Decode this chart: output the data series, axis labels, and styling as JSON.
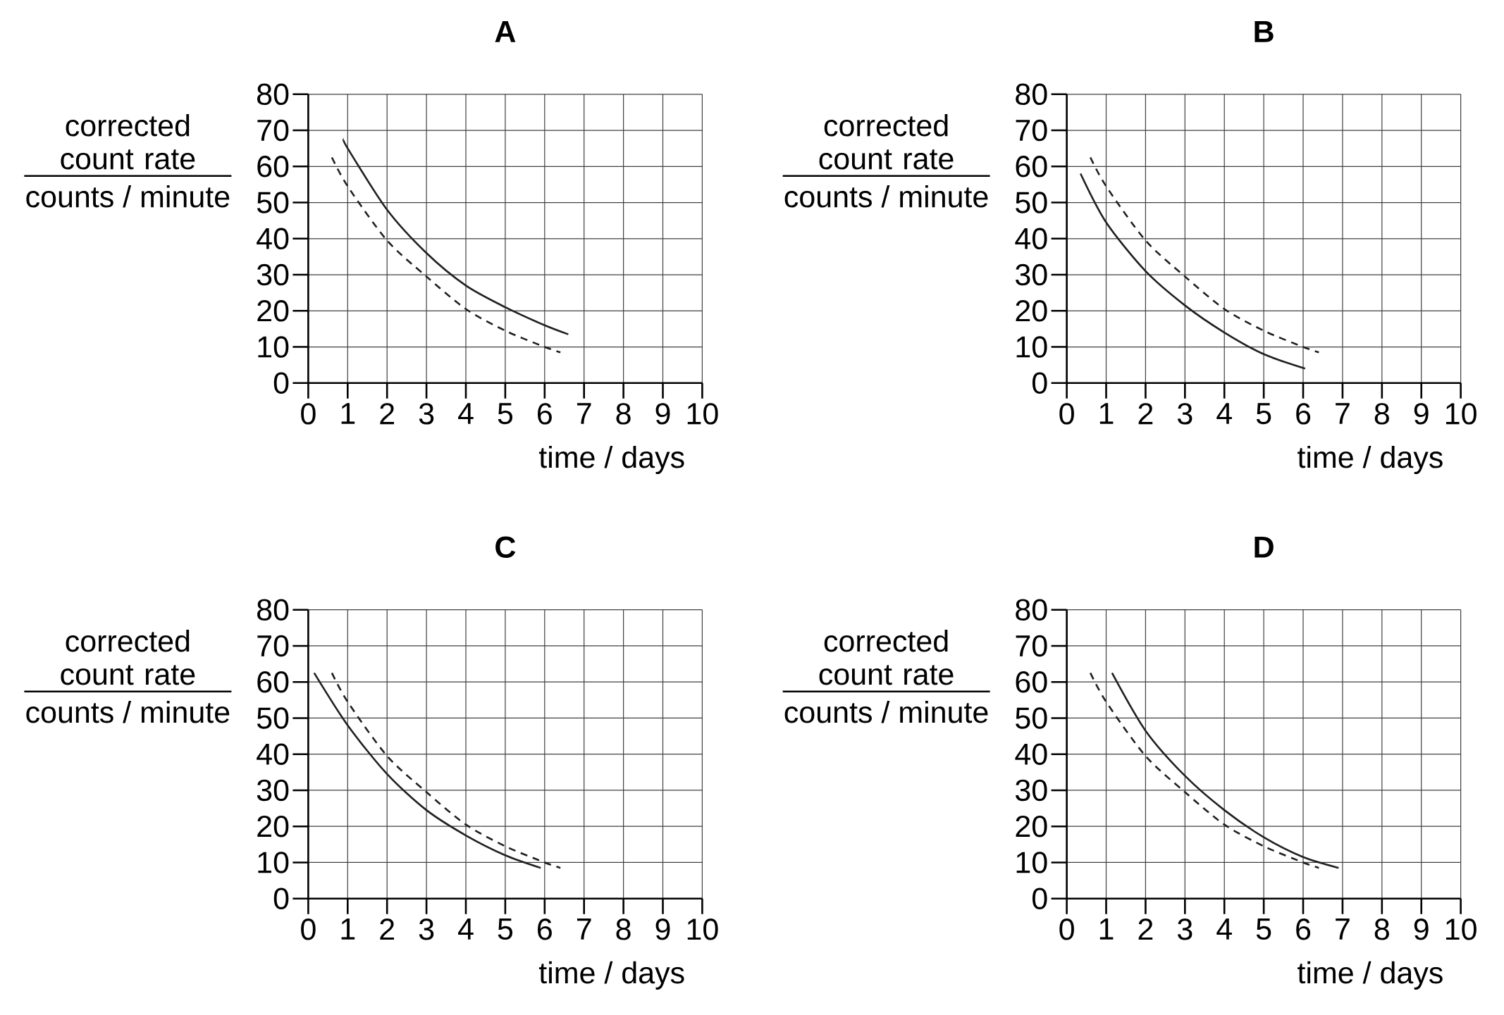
{
  "chart_data": [
    {
      "type": "line",
      "title": "A",
      "xlabel": "time / days",
      "ylabel": "corrected count rate",
      "annotations": [
        "counts / minute"
      ],
      "xlim": [
        0,
        10
      ],
      "ylim": [
        0,
        80
      ],
      "xticks": [
        0,
        1,
        2,
        3,
        4,
        5,
        6,
        7,
        8,
        9,
        10
      ],
      "yticks": [
        0,
        10,
        20,
        30,
        40,
        50,
        60,
        70,
        80
      ],
      "grid": true,
      "series": [
        {
          "color": "#231f20",
          "line_style": "solid",
          "x": [
            0.9,
            1,
            2,
            3,
            4,
            5,
            6,
            6.6
          ],
          "values": [
            67.5,
            65,
            48,
            36,
            27,
            21,
            16,
            13.5
          ]
        },
        {
          "color": "#231f20",
          "line_style": "dashed",
          "x": [
            0.6,
            1,
            2,
            3,
            4,
            5,
            6,
            6.4
          ],
          "values": [
            62.5,
            54.5,
            39.5,
            29.5,
            20.5,
            14.5,
            10,
            8.5
          ]
        }
      ]
    },
    {
      "type": "line",
      "title": "B",
      "xlabel": "time / days",
      "ylabel": "corrected count rate",
      "annotations": [
        "counts / minute"
      ],
      "xlim": [
        0,
        10
      ],
      "ylim": [
        0,
        80
      ],
      "xticks": [
        0,
        1,
        2,
        3,
        4,
        5,
        6,
        7,
        8,
        9,
        10
      ],
      "yticks": [
        0,
        10,
        20,
        30,
        40,
        50,
        60,
        70,
        80
      ],
      "grid": true,
      "series": [
        {
          "color": "#231f20",
          "line_style": "solid",
          "x": [
            0.35,
            1,
            2,
            3,
            4,
            5,
            6.05
          ],
          "values": [
            58,
            44.5,
            31,
            21.5,
            14,
            8,
            4
          ]
        },
        {
          "color": "#231f20",
          "line_style": "dashed",
          "x": [
            0.6,
            1,
            2,
            3,
            4,
            5,
            6,
            6.4
          ],
          "values": [
            62.5,
            54.5,
            39.5,
            29.5,
            20.5,
            14.5,
            10,
            8.5
          ]
        }
      ]
    },
    {
      "type": "line",
      "title": "C",
      "xlabel": "time / days",
      "ylabel": "corrected count rate",
      "annotations": [
        "counts / minute"
      ],
      "xlim": [
        0,
        10
      ],
      "ylim": [
        0,
        80
      ],
      "xticks": [
        0,
        1,
        2,
        3,
        4,
        5,
        6,
        7,
        8,
        9,
        10
      ],
      "yticks": [
        0,
        10,
        20,
        30,
        40,
        50,
        60,
        70,
        80
      ],
      "grid": true,
      "series": [
        {
          "color": "#231f20",
          "line_style": "solid",
          "x": [
            0.15,
            1,
            2,
            3,
            4,
            5,
            5.9
          ],
          "values": [
            62.5,
            48,
            34.5,
            24.5,
            17.5,
            12,
            8.5
          ]
        },
        {
          "color": "#231f20",
          "line_style": "dashed",
          "x": [
            0.6,
            1,
            2,
            3,
            4,
            5,
            6,
            6.4
          ],
          "values": [
            62.5,
            54.5,
            39.5,
            29.5,
            20.5,
            14.5,
            10,
            8.5
          ]
        }
      ]
    },
    {
      "type": "line",
      "title": "D",
      "xlabel": "time / days",
      "ylabel": "corrected count rate",
      "annotations": [
        "counts / minute"
      ],
      "xlim": [
        0,
        10
      ],
      "ylim": [
        0,
        80
      ],
      "xticks": [
        0,
        1,
        2,
        3,
        4,
        5,
        6,
        7,
        8,
        9,
        10
      ],
      "yticks": [
        0,
        10,
        20,
        30,
        40,
        50,
        60,
        70,
        80
      ],
      "grid": true,
      "series": [
        {
          "color": "#231f20",
          "line_style": "solid",
          "x": [
            1.15,
            2,
            3,
            4,
            5,
            6,
            6.9
          ],
          "values": [
            62.5,
            46.5,
            34,
            24.5,
            17,
            11.5,
            8.5
          ]
        },
        {
          "color": "#231f20",
          "line_style": "dashed",
          "x": [
            0.6,
            1,
            2,
            3,
            4,
            5,
            6,
            6.4
          ],
          "values": [
            62.5,
            54.5,
            39.5,
            29.5,
            20.5,
            14.5,
            10,
            8.5
          ]
        }
      ]
    }
  ]
}
